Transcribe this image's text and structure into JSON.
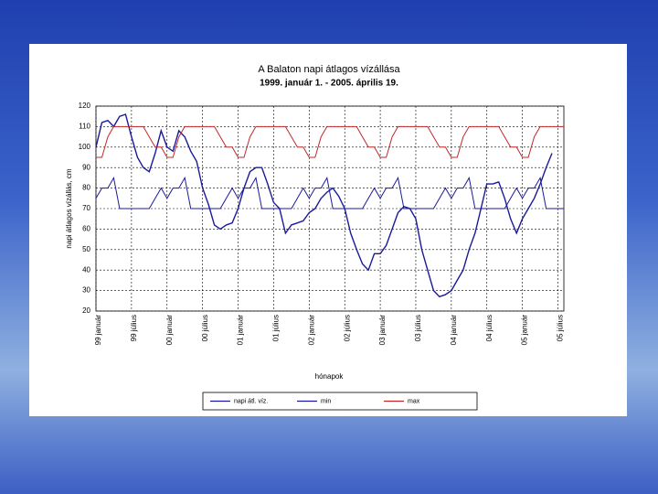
{
  "chart_data": {
    "type": "line",
    "title": "A Balaton napi átlagos vízállása",
    "subtitle": "1999. január 1. - 2005. április 19.",
    "y_label": "napi átlagos vízállás, cm",
    "x_label": "hónapok",
    "categories": [
      "99 január",
      null,
      null,
      null,
      null,
      null,
      "99 július",
      null,
      null,
      null,
      null,
      null,
      "00 január",
      null,
      null,
      null,
      null,
      null,
      "00 július",
      null,
      null,
      null,
      null,
      null,
      "01 január",
      null,
      null,
      null,
      null,
      null,
      "01 július",
      null,
      null,
      null,
      null,
      null,
      "02 január",
      null,
      null,
      null,
      null,
      null,
      "02 július",
      null,
      null,
      null,
      null,
      null,
      "03 január",
      null,
      null,
      null,
      null,
      null,
      "03 július",
      null,
      null,
      null,
      null,
      null,
      "04 január",
      null,
      null,
      null,
      null,
      null,
      "04 július",
      null,
      null,
      null,
      null,
      null,
      "05 január",
      null,
      null,
      null,
      null,
      null,
      "05 július",
      null
    ],
    "ylim": [
      20,
      120
    ],
    "yticks": [
      20,
      30,
      40,
      50,
      60,
      70,
      80,
      90,
      100,
      110,
      120
    ],
    "grid": true,
    "series": [
      {
        "name": "napi átl. víz.",
        "color": "#1a1a9c",
        "values": [
          100,
          112,
          113,
          110,
          115,
          116,
          105,
          95,
          90,
          88,
          97,
          108,
          100,
          98,
          108,
          105,
          98,
          93,
          80,
          72,
          62,
          60,
          62,
          63,
          70,
          80,
          88,
          90,
          90,
          82,
          73,
          70,
          58,
          62,
          63,
          64,
          68,
          70,
          75,
          78,
          80,
          76,
          70,
          58,
          50,
          43,
          40,
          48,
          48,
          52,
          60,
          68,
          71,
          70,
          65,
          50,
          40,
          30,
          27,
          28,
          30,
          35,
          40,
          50,
          58,
          70,
          82,
          82,
          83,
          75,
          65,
          58,
          65,
          70,
          75,
          82,
          90,
          97,
          null,
          null
        ]
      },
      {
        "name": "min",
        "color": "#1a1a9c",
        "values": [
          75,
          80,
          80,
          85,
          70,
          70,
          70,
          70,
          70,
          70,
          75,
          80,
          75,
          80,
          80,
          85,
          70,
          70,
          70,
          70,
          70,
          70,
          75,
          80,
          75,
          80,
          80,
          85,
          70,
          70,
          70,
          70,
          70,
          70,
          75,
          80,
          75,
          80,
          80,
          85,
          70,
          70,
          70,
          70,
          70,
          70,
          75,
          80,
          75,
          80,
          80,
          85,
          70,
          70,
          70,
          70,
          70,
          70,
          75,
          80,
          75,
          80,
          80,
          85,
          70,
          70,
          70,
          70,
          70,
          70,
          75,
          80,
          75,
          80,
          80,
          85,
          70,
          70,
          70,
          70
        ]
      },
      {
        "name": "max",
        "color": "#c0282a",
        "values": [
          95,
          95,
          105,
          110,
          110,
          110,
          110,
          110,
          110,
          105,
          100,
          100,
          95,
          95,
          105,
          110,
          110,
          110,
          110,
          110,
          110,
          105,
          100,
          100,
          95,
          95,
          105,
          110,
          110,
          110,
          110,
          110,
          110,
          105,
          100,
          100,
          95,
          95,
          105,
          110,
          110,
          110,
          110,
          110,
          110,
          105,
          100,
          100,
          95,
          95,
          105,
          110,
          110,
          110,
          110,
          110,
          110,
          105,
          100,
          100,
          95,
          95,
          105,
          110,
          110,
          110,
          110,
          110,
          110,
          105,
          100,
          100,
          95,
          95,
          105,
          110,
          110,
          110,
          110,
          110
        ]
      }
    ]
  }
}
